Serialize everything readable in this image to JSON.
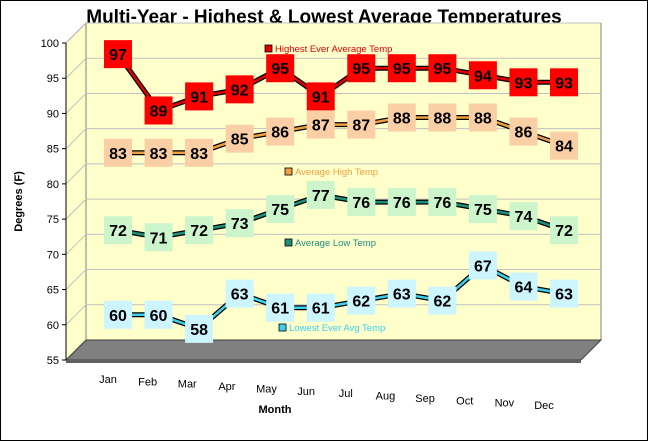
{
  "chart_data": {
    "type": "line",
    "title": "Multi-Year - Highest & Lowest Average Temperatures",
    "xlabel": "Month",
    "ylabel": "Degrees (F)",
    "ylim": [
      55,
      100
    ],
    "yticks": [
      55,
      60,
      65,
      70,
      75,
      80,
      85,
      90,
      95,
      100
    ],
    "categories": [
      "Jan",
      "Feb",
      "Mar",
      "Apr",
      "May",
      "Jun",
      "Jul",
      "Aug",
      "Sep",
      "Oct",
      "Nov",
      "Dec"
    ],
    "grid": true,
    "legend_placement": "inline",
    "series": [
      {
        "name": "Highest Ever Average Temp",
        "values": [
          97,
          89,
          91,
          92,
          95,
          91,
          95,
          95,
          95,
          94,
          93,
          93
        ],
        "color": "#e00000",
        "label_bg": "#ff0000"
      },
      {
        "name": "Average High Temp",
        "values": [
          83,
          83,
          83,
          85,
          86,
          87,
          87,
          88,
          88,
          88,
          86,
          84
        ],
        "color": "#f0a040",
        "label_bg": "#fbcfa6"
      },
      {
        "name": "Average Low Temp",
        "values": [
          72,
          71,
          72,
          73,
          75,
          77,
          76,
          76,
          76,
          75,
          74,
          72
        ],
        "color": "#1f8f7a",
        "label_bg": "#ccf5cc"
      },
      {
        "name": "Lowest Ever Avg Temp",
        "values": [
          60,
          60,
          58,
          63,
          61,
          61,
          62,
          63,
          62,
          67,
          64,
          63
        ],
        "color": "#3bd1ee",
        "label_bg": "#ccf5ff"
      }
    ],
    "colors": {
      "plot_wall": "#ffffcc",
      "floor": "#808080",
      "grid": "#c0c0c0"
    }
  }
}
